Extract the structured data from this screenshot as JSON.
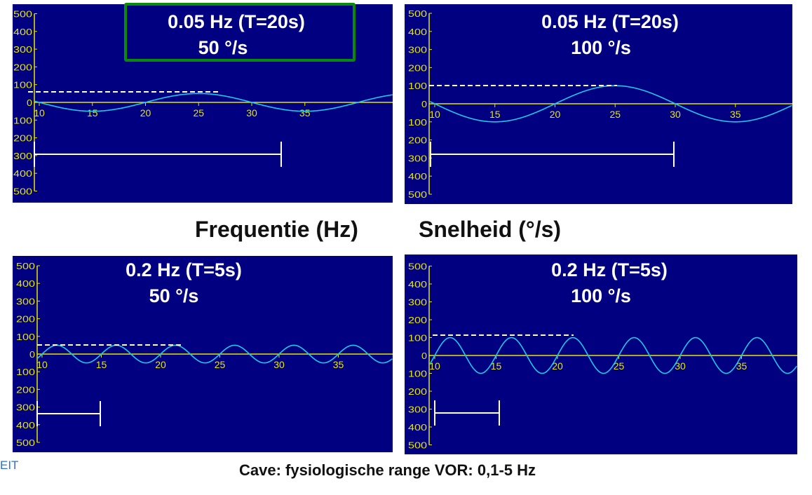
{
  "headings": {
    "left": "Frequentie (Hz)",
    "right": "Snelheid (°/s)"
  },
  "footer": "Cave: fysiologische range VOR: 0,1-5 Hz",
  "corner_text": "EIT",
  "colors": {
    "background": "#000080",
    "axis": "#e6e600",
    "signal": "#1ec8e6",
    "marker": "#ffffff",
    "highlight": "#0a8a0a"
  },
  "chart_data": [
    {
      "type": "line",
      "title": "0.05 Hz (T=20s)",
      "subtitle": "50 °/s",
      "highlighted": true,
      "frequency_hz": 0.05,
      "amplitude": 50,
      "yticks": [
        "500",
        "400",
        "300",
        "200",
        "100",
        "0",
        "100",
        "200",
        "300",
        "400",
        "500"
      ],
      "xticks": [
        "10",
        "15",
        "20",
        "25",
        "30",
        "35"
      ],
      "xlim": [
        10,
        40
      ],
      "ylim": [
        -500,
        500
      ],
      "series": [
        {
          "function": "-50*sin(2*pi*0.05*(t-10))"
        }
      ]
    },
    {
      "type": "line",
      "title": "0.05 Hz (T=20s)",
      "subtitle": "100 °/s",
      "highlighted": false,
      "frequency_hz": 0.05,
      "amplitude": 100,
      "yticks": [
        "500",
        "400",
        "300",
        "200",
        "100",
        "0",
        "100",
        "200",
        "300",
        "400",
        "500"
      ],
      "xticks": [
        "10",
        "15",
        "20",
        "25",
        "30",
        "35"
      ],
      "xlim": [
        10,
        40
      ],
      "ylim": [
        -500,
        500
      ],
      "series": [
        {
          "function": "-100*sin(2*pi*0.05*(t-10))"
        }
      ]
    },
    {
      "type": "line",
      "title": "0.2 Hz (T=5s)",
      "subtitle": "50 °/s",
      "highlighted": false,
      "frequency_hz": 0.2,
      "amplitude": 50,
      "yticks": [
        "500",
        "400",
        "300",
        "200",
        "100",
        "0",
        "100",
        "200",
        "300",
        "400",
        "500"
      ],
      "xticks": [
        "10",
        "15",
        "20",
        "25",
        "30",
        "35"
      ],
      "xlim": [
        10,
        40
      ],
      "ylim": [
        -500,
        500
      ],
      "series": [
        {
          "function": "50*sin(2*pi*0.2*(t-10))"
        }
      ]
    },
    {
      "type": "line",
      "title": "0.2 Hz (T=5s)",
      "subtitle": "100 °/s",
      "highlighted": false,
      "frequency_hz": 0.2,
      "amplitude": 100,
      "yticks": [
        "500",
        "400",
        "300",
        "200",
        "100",
        "0",
        "100",
        "200",
        "300",
        "400",
        "500"
      ],
      "xticks": [
        "10",
        "15",
        "20",
        "25",
        "30",
        "35"
      ],
      "xlim": [
        10,
        40
      ],
      "ylim": [
        -500,
        500
      ],
      "series": [
        {
          "function": "100*sin(2*pi*0.2*(t-10))"
        }
      ]
    }
  ]
}
